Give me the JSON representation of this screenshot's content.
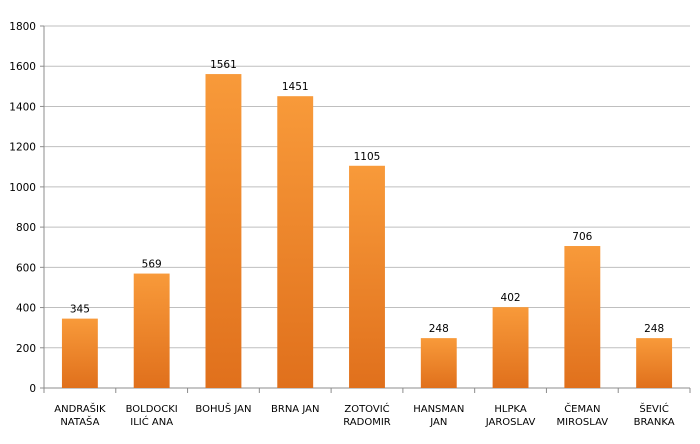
{
  "chart_data": {
    "type": "bar",
    "categories": [
      [
        "ANDRAŠIK",
        "NATAŠA"
      ],
      [
        "BOLDOCKI",
        "ILIĆ ANA"
      ],
      [
        "BOHUŠ JAN"
      ],
      [
        "BRNA JAN"
      ],
      [
        "ZOTOVIĆ",
        "RADOMIR"
      ],
      [
        "HANSMAN",
        "JAN"
      ],
      [
        "HLPKA",
        "JAROSLAV"
      ],
      [
        "ČEMAN",
        "MIROSLAV"
      ],
      [
        "ŠEVIĆ",
        "BRANKA"
      ]
    ],
    "values": [
      345,
      569,
      1561,
      1451,
      1105,
      248,
      402,
      706,
      248
    ],
    "ylim": [
      0,
      1800
    ],
    "yticks": [
      0,
      200,
      400,
      600,
      800,
      1000,
      1200,
      1400,
      1600,
      1800
    ],
    "grid": true,
    "legend": "none",
    "colors": {
      "bar_top": "#f89a3a",
      "bar_bottom": "#e0701c",
      "grid": "#bfbfbf",
      "axis": "#8c8c8c"
    }
  }
}
